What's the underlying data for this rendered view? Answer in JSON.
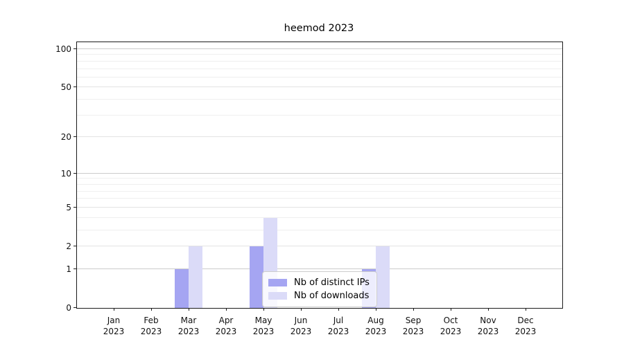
{
  "chart_data": {
    "type": "bar",
    "title": "heemod 2023",
    "categories": [
      "Jan 2023",
      "Feb 2023",
      "Mar 2023",
      "Apr 2023",
      "May 2023",
      "Jun 2023",
      "Jul 2023",
      "Aug 2023",
      "Sep 2023",
      "Oct 2023",
      "Nov 2023",
      "Dec 2023"
    ],
    "x_tick_labels": [
      {
        "line1": "Jan",
        "line2": "2023"
      },
      {
        "line1": "Feb",
        "line2": "2023"
      },
      {
        "line1": "Mar",
        "line2": "2023"
      },
      {
        "line1": "Apr",
        "line2": "2023"
      },
      {
        "line1": "May",
        "line2": "2023"
      },
      {
        "line1": "Jun",
        "line2": "2023"
      },
      {
        "line1": "Jul",
        "line2": "2023"
      },
      {
        "line1": "Aug",
        "line2": "2023"
      },
      {
        "line1": "Sep",
        "line2": "2023"
      },
      {
        "line1": "Oct",
        "line2": "2023"
      },
      {
        "line1": "Nov",
        "line2": "2023"
      },
      {
        "line1": "Dec",
        "line2": "2023"
      }
    ],
    "series": [
      {
        "name": "Nb of distinct IPs",
        "color": "#a5a5f2",
        "values": [
          0,
          0,
          1,
          0,
          2,
          0,
          0,
          1,
          0,
          0,
          0,
          0
        ]
      },
      {
        "name": "Nb of downloads",
        "color": "#dbdbf8",
        "values": [
          0,
          0,
          2,
          0,
          4,
          0,
          0,
          2,
          0,
          0,
          0,
          0
        ]
      }
    ],
    "yscale": "log1p",
    "ylim": [
      0,
      113
    ],
    "y_ticks": [
      0,
      1,
      2,
      5,
      10,
      20,
      50,
      100
    ],
    "y_minor_gridlines": [
      3,
      4,
      6,
      7,
      8,
      9,
      30,
      40,
      60,
      70,
      80,
      90
    ],
    "grid": true,
    "xlabel": "",
    "ylabel": "",
    "legend_position": "lower center inside"
  },
  "colors": {
    "axis": "#1a1a1a",
    "grid_decade": "#cbcbcb",
    "grid_labeled": "#e3e3e3",
    "grid_minor": "#efefef",
    "legend_border": "#cccccc"
  }
}
